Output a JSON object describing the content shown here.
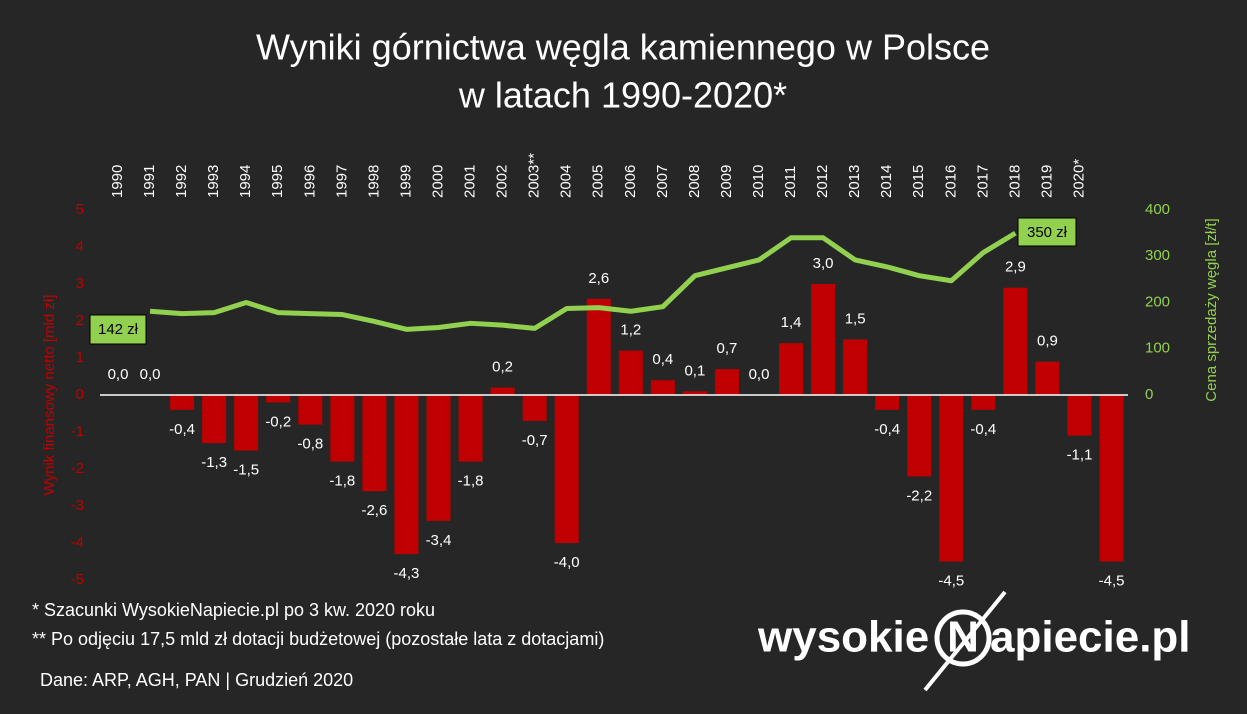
{
  "chart_data": {
    "type": "bar-line",
    "title": [
      "Wyniki górnictwa węgla kamiennego w Polsce",
      "w latach 1990-2020*"
    ],
    "categories": [
      "1990",
      "1991",
      "1992",
      "1993",
      "1994",
      "1995",
      "1996",
      "1997",
      "1998",
      "1999",
      "2000",
      "2001",
      "2002",
      "2003**",
      "2004",
      "2005",
      "2006",
      "2007",
      "2008",
      "2009",
      "2010",
      "2011",
      "2012",
      "2013",
      "2014",
      "2015",
      "2016",
      "2017",
      "2018",
      "2019",
      "2020*",
      null
    ],
    "series": [
      {
        "type": "bar",
        "color": "#c00000",
        "axis": "y",
        "values": [
          0.0,
          0.0,
          -0.4,
          -1.3,
          -1.5,
          -0.2,
          -0.8,
          -1.8,
          -2.6,
          -4.3,
          -3.4,
          -1.8,
          0.2,
          -0.7,
          -4.0,
          2.6,
          1.2,
          0.4,
          0.1,
          0.7,
          0.0,
          1.4,
          3.0,
          1.5,
          -0.4,
          -2.2,
          -4.5,
          -0.4,
          2.9,
          0.9,
          -1.1,
          -4.5
        ],
        "value_labels": [
          "0,0",
          "0,0",
          "-0,4",
          "-1,3",
          "-1,5",
          "-0,2",
          "-0,8",
          "-1,8",
          "-2,6",
          "-4,3",
          "-3,4",
          "-1,8",
          "0,2",
          "-0,7",
          "-4,0",
          "2,6",
          "1,2",
          "0,4",
          "0,1",
          "0,7",
          "0,0",
          "1,4",
          "3,0",
          "1,5",
          "-0,4",
          "-2,2",
          "-4,5",
          "-0,4",
          "2,9",
          "0,9",
          "-1,1",
          "-4,5"
        ]
      },
      {
        "type": "line",
        "color": "#92d050",
        "axis": "y2",
        "values": [
          null,
          181,
          176,
          178,
          200,
          178,
          176,
          174,
          159,
          142,
          146,
          155,
          151,
          144,
          187,
          189,
          181,
          191,
          258,
          275,
          292,
          340,
          340,
          292,
          277,
          258,
          247,
          308,
          350,
          null,
          null,
          null
        ]
      }
    ],
    "ylabel": "Wynik finansowy netto [mld zł]",
    "y2label": "Cena sprzedaży węgla [zł/t]",
    "ylim": [
      -5,
      5
    ],
    "yticks": [
      -5,
      -4,
      -3,
      -2,
      -1,
      0,
      1,
      2,
      3,
      4,
      5
    ],
    "y2lim": [
      -400,
      400
    ],
    "y2ticks": [
      0,
      100,
      200,
      300,
      400
    ],
    "annotations": [
      "142 zł",
      "350 zł"
    ],
    "notes": [
      "* Szacunki WysokieNapiecie.pl po 3 kw. 2020 roku",
      "** Po odjęciu 17,5 mld zł dotacji budżetowej (pozostałe lata z dotacjami)",
      "Dane: ARP, AGH, PAN  |  Grudzień 2020"
    ],
    "logo": [
      "wysokie",
      "N",
      "apiecie.pl"
    ]
  }
}
